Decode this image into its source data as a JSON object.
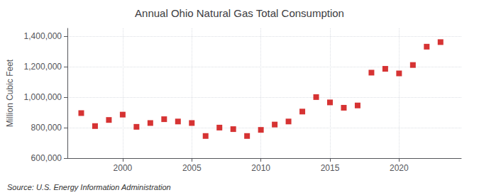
{
  "chart_data": {
    "type": "scatter",
    "title": "Annual Ohio Natural Gas Total Consumption",
    "ylabel": "Million Cubic Feet",
    "annotations": [
      "Source: U.S. Energy Information Administration"
    ],
    "x": [
      1997,
      1998,
      1999,
      2000,
      2001,
      2002,
      2003,
      2004,
      2005,
      2006,
      2007,
      2008,
      2009,
      2010,
      2011,
      2012,
      2013,
      2014,
      2015,
      2016,
      2017,
      2018,
      2019,
      2020,
      2021,
      2022,
      2023
    ],
    "values": [
      895000,
      810000,
      850000,
      885000,
      805000,
      830000,
      855000,
      840000,
      830000,
      745000,
      800000,
      790000,
      745000,
      785000,
      820000,
      840000,
      905000,
      1000000,
      965000,
      930000,
      945000,
      1160000,
      1185000,
      1155000,
      1210000,
      1330000,
      1360000
    ],
    "color": "#cc0000",
    "marker": "square",
    "xlim": [
      1996,
      2024.5
    ],
    "xticks": [
      2000,
      2005,
      2010,
      2015,
      2020
    ],
    "ylim": [
      600000,
      1450000
    ],
    "yticks": [
      {
        "value": 600000,
        "label": "600,000"
      },
      {
        "value": 800000,
        "label": "800,000"
      },
      {
        "value": 1000000,
        "label": "1,000,000"
      },
      {
        "value": 1200000,
        "label": "1,200,000"
      },
      {
        "value": 1400000,
        "label": "1,400,000"
      }
    ],
    "grid": true
  }
}
